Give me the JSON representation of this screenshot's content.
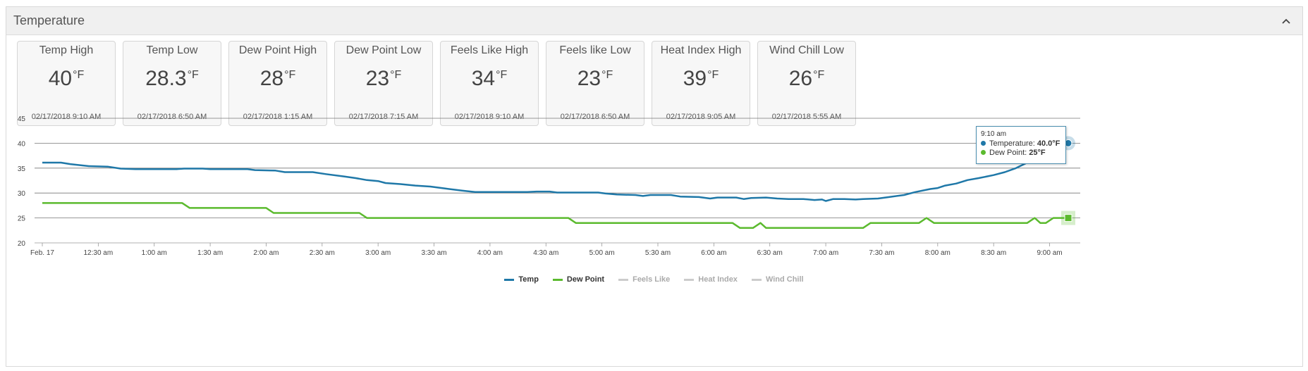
{
  "panel": {
    "title": "Temperature"
  },
  "cards": [
    {
      "label": "Temp High",
      "value": "40",
      "unit": "°F",
      "date": "02/17/2018 9:10 AM"
    },
    {
      "label": "Temp Low",
      "value": "28.3",
      "unit": "°F",
      "date": "02/17/2018 6:50 AM"
    },
    {
      "label": "Dew Point High",
      "value": "28",
      "unit": "°F",
      "date": "02/17/2018 1:15 AM"
    },
    {
      "label": "Dew Point Low",
      "value": "23",
      "unit": "°F",
      "date": "02/17/2018 7:15 AM"
    },
    {
      "label": "Feels Like High",
      "value": "34",
      "unit": "°F",
      "date": "02/17/2018 9:10 AM"
    },
    {
      "label": "Feels like Low",
      "value": "23",
      "unit": "°F",
      "date": "02/17/2018 6:50 AM"
    },
    {
      "label": "Heat Index High",
      "value": "39",
      "unit": "°F",
      "date": "02/17/2018 9:05 AM"
    },
    {
      "label": "Wind Chill Low",
      "value": "26",
      "unit": "°F",
      "date": "02/17/2018 5:55 AM"
    }
  ],
  "tooltip": {
    "time": "9:10 am",
    "temp_label": "Temperature:",
    "temp_value": "40.0°F",
    "dew_label": "Dew Point:",
    "dew_value": "25°F"
  },
  "chart_data": {
    "type": "line",
    "ylim": [
      20,
      45
    ],
    "yticks": [
      20,
      25,
      30,
      35,
      40,
      45
    ],
    "xlim": [
      0,
      550
    ],
    "xticks": [
      {
        "t": 0,
        "label": "Feb. 17"
      },
      {
        "t": 30,
        "label": "12:30 am"
      },
      {
        "t": 60,
        "label": "1:00 am"
      },
      {
        "t": 90,
        "label": "1:30 am"
      },
      {
        "t": 120,
        "label": "2:00 am"
      },
      {
        "t": 150,
        "label": "2:30 am"
      },
      {
        "t": 180,
        "label": "3:00 am"
      },
      {
        "t": 210,
        "label": "3:30 am"
      },
      {
        "t": 240,
        "label": "4:00 am"
      },
      {
        "t": 270,
        "label": "4:30 am"
      },
      {
        "t": 300,
        "label": "5:00 am"
      },
      {
        "t": 330,
        "label": "5:30 am"
      },
      {
        "t": 360,
        "label": "6:00 am"
      },
      {
        "t": 390,
        "label": "6:30 am"
      },
      {
        "t": 420,
        "label": "7:00 am"
      },
      {
        "t": 450,
        "label": "7:30 am"
      },
      {
        "t": 480,
        "label": "8:00 am"
      },
      {
        "t": 510,
        "label": "8:30 am"
      },
      {
        "t": 540,
        "label": "9:00 am"
      }
    ],
    "series": [
      {
        "name": "Temp",
        "color": "#1f78a8",
        "points": [
          [
            0,
            36.1
          ],
          [
            10,
            36.1
          ],
          [
            15,
            35.8
          ],
          [
            25,
            35.4
          ],
          [
            35,
            35.3
          ],
          [
            42,
            34.9
          ],
          [
            50,
            34.8
          ],
          [
            58,
            34.8
          ],
          [
            72,
            34.8
          ],
          [
            76,
            34.9
          ],
          [
            86,
            34.9
          ],
          [
            90,
            34.8
          ],
          [
            110,
            34.8
          ],
          [
            114,
            34.6
          ],
          [
            125,
            34.5
          ],
          [
            130,
            34.2
          ],
          [
            145,
            34.2
          ],
          [
            152,
            33.8
          ],
          [
            162,
            33.3
          ],
          [
            168,
            33.0
          ],
          [
            174,
            32.6
          ],
          [
            180,
            32.4
          ],
          [
            184,
            32.0
          ],
          [
            192,
            31.8
          ],
          [
            200,
            31.5
          ],
          [
            208,
            31.3
          ],
          [
            216,
            30.9
          ],
          [
            225,
            30.5
          ],
          [
            232,
            30.2
          ],
          [
            240,
            30.2
          ],
          [
            260,
            30.2
          ],
          [
            265,
            30.3
          ],
          [
            272,
            30.3
          ],
          [
            276,
            30.1
          ],
          [
            298,
            30.1
          ],
          [
            302,
            29.9
          ],
          [
            308,
            29.7
          ],
          [
            318,
            29.6
          ],
          [
            322,
            29.4
          ],
          [
            326,
            29.6
          ],
          [
            337,
            29.6
          ],
          [
            342,
            29.3
          ],
          [
            352,
            29.2
          ],
          [
            358,
            28.9
          ],
          [
            362,
            29.1
          ],
          [
            372,
            29.1
          ],
          [
            376,
            28.8
          ],
          [
            380,
            29.0
          ],
          [
            388,
            29.1
          ],
          [
            394,
            28.9
          ],
          [
            400,
            28.8
          ],
          [
            408,
            28.8
          ],
          [
            414,
            28.6
          ],
          [
            418,
            28.7
          ],
          [
            420,
            28.4
          ],
          [
            424,
            28.8
          ],
          [
            430,
            28.8
          ],
          [
            436,
            28.7
          ],
          [
            440,
            28.8
          ],
          [
            448,
            28.9
          ],
          [
            454,
            29.2
          ],
          [
            462,
            29.6
          ],
          [
            468,
            30.2
          ],
          [
            476,
            30.8
          ],
          [
            480,
            31.0
          ],
          [
            484,
            31.5
          ],
          [
            490,
            31.9
          ],
          [
            496,
            32.6
          ],
          [
            502,
            33.0
          ],
          [
            510,
            33.6
          ],
          [
            516,
            34.2
          ],
          [
            522,
            35.0
          ],
          [
            528,
            36.1
          ],
          [
            532,
            36.3
          ],
          [
            536,
            37.0
          ],
          [
            540,
            38.0
          ],
          [
            545,
            39.5
          ],
          [
            550,
            40.0
          ]
        ]
      },
      {
        "name": "Dew Point",
        "color": "#5bba2e",
        "points": [
          [
            0,
            28
          ],
          [
            75,
            28
          ],
          [
            79,
            27
          ],
          [
            120,
            27
          ],
          [
            124,
            26
          ],
          [
            170,
            26
          ],
          [
            174,
            25
          ],
          [
            282,
            25
          ],
          [
            286,
            24
          ],
          [
            370,
            24
          ],
          [
            374,
            23
          ],
          [
            381,
            23
          ],
          [
            385,
            24
          ],
          [
            388,
            23
          ],
          [
            440,
            23
          ],
          [
            444,
            24
          ],
          [
            470,
            24
          ],
          [
            474,
            25
          ],
          [
            478,
            24
          ],
          [
            528,
            24
          ],
          [
            532,
            25
          ],
          [
            535,
            24
          ],
          [
            538,
            24
          ],
          [
            542,
            25
          ],
          [
            550,
            25
          ]
        ]
      },
      {
        "name": "Feels Like",
        "color": "#aaaaaa",
        "points": []
      },
      {
        "name": "Heat Index",
        "color": "#aaaaaa",
        "points": []
      },
      {
        "name": "Wind Chill",
        "color": "#aaaaaa",
        "points": []
      }
    ],
    "legend": [
      {
        "name": "Temp",
        "color": "#1f78a8",
        "visible": true
      },
      {
        "name": "Dew Point",
        "color": "#5bba2e",
        "visible": true
      },
      {
        "name": "Feels Like",
        "color": "#aaaaaa",
        "visible": false
      },
      {
        "name": "Heat Index",
        "color": "#aaaaaa",
        "visible": false
      },
      {
        "name": "Wind Chill",
        "color": "#aaaaaa",
        "visible": false
      }
    ],
    "highlight": {
      "t": 550
    }
  }
}
